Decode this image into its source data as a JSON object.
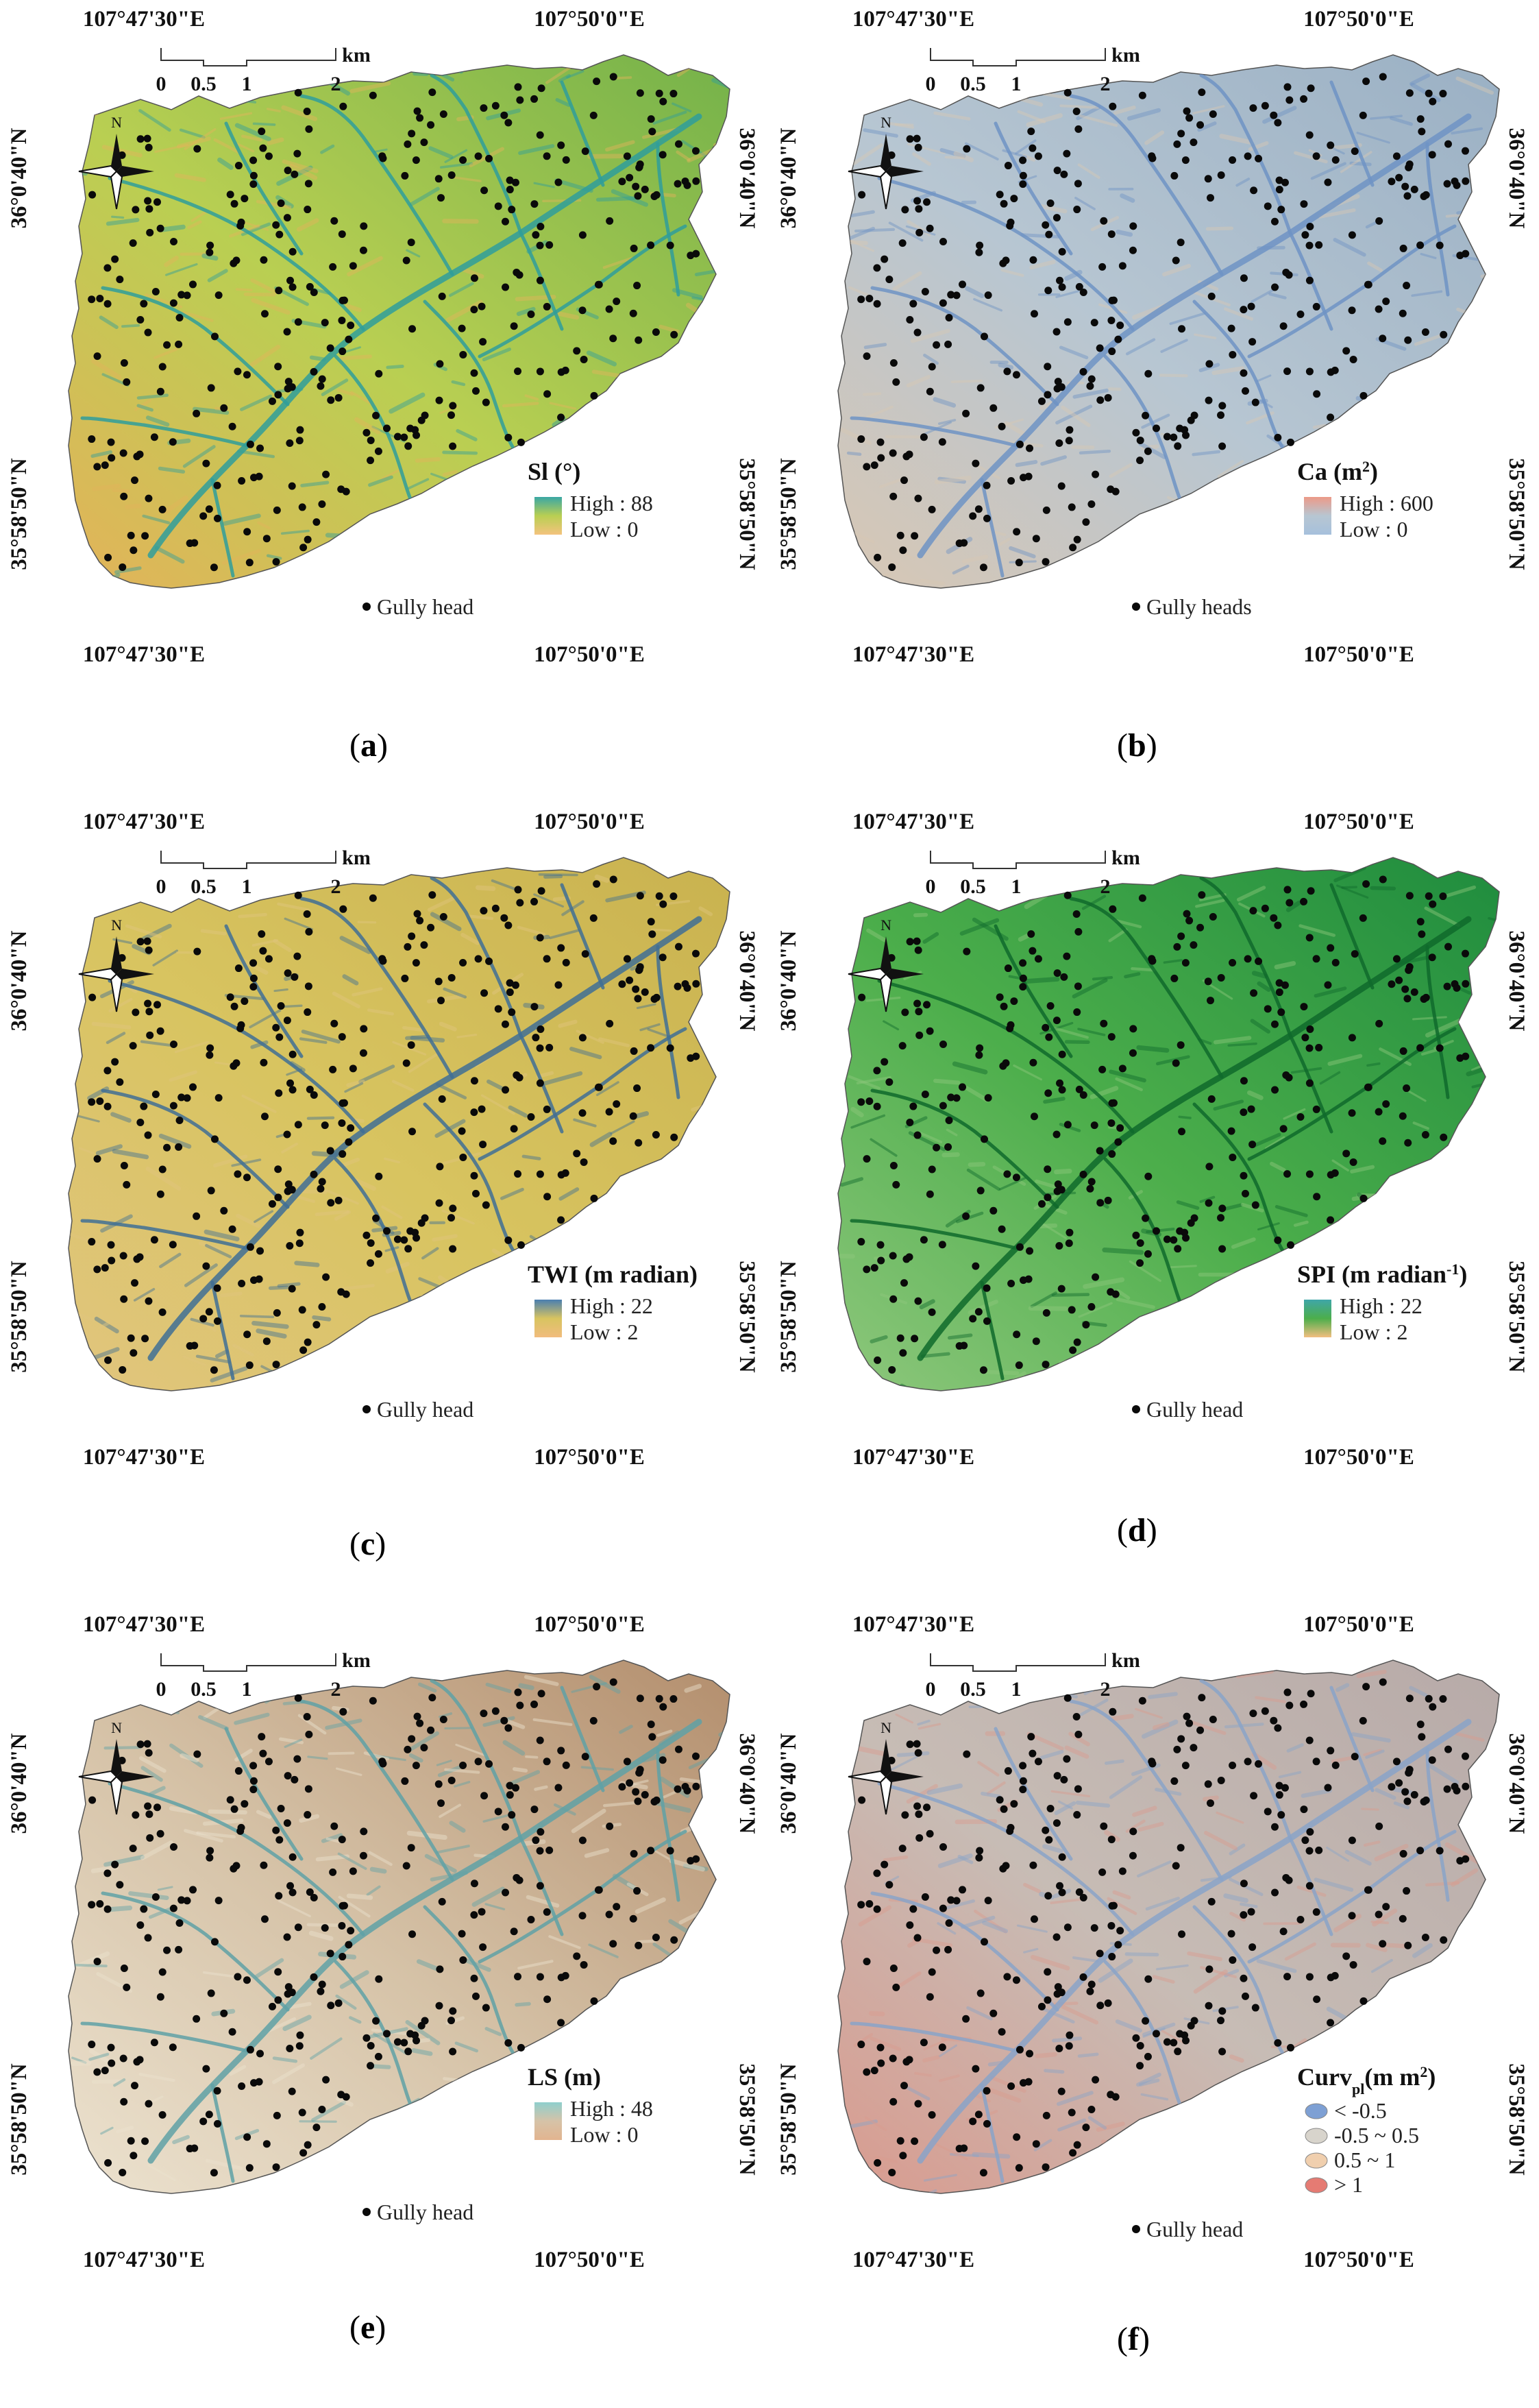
{
  "coordinates": {
    "top_left_lon": "107°47'30\"E",
    "top_right_lon": "107°50'0\"E",
    "bottom_left_lon": "107°47'30\"E",
    "bottom_right_lon": "107°50'0\"E",
    "upper_lat": "36°0'40\"N",
    "lower_lat": "35°58'50\"N"
  },
  "north_arrow": "N",
  "scale_bar": {
    "ticks": [
      "0",
      "0.5",
      "1",
      "2"
    ],
    "unit": "km"
  },
  "icons": {
    "north_arrow": "compass-rose-icon",
    "gully_marker": "black-dot-icon"
  },
  "panels": [
    {
      "label": "a",
      "title": "Sl (°)",
      "title_sub": "",
      "title_end": "",
      "legend": [
        {
          "text": "High : 88",
          "color": "#3aa7a4"
        },
        {
          "text": "Low : 0",
          "color": "#f4c37e"
        }
      ],
      "point_label": "Gully head",
      "colors": {
        "base": "#74b24a",
        "mid": "#b9cf52",
        "ridge": "#e3b35a",
        "valley": "#2f9d9b"
      }
    },
    {
      "label": "b",
      "title": "Ca (m",
      "title_sub": "2",
      "title_end": ")",
      "legend": [
        {
          "text": "High : 600",
          "color": "#ec9a88"
        },
        {
          "text": "Low : 0",
          "color": "#a6c0dc"
        }
      ],
      "point_label": "Gully heads",
      "colors": {
        "base": "#9ab0c4",
        "mid": "#b7c6d2",
        "ridge": "#d8c7b4",
        "valley": "#6f93c4"
      }
    },
    {
      "label": "c",
      "title": "TWI (m  radian)",
      "title_sub": "",
      "title_end": "",
      "legend": [
        {
          "text": "High : 22",
          "color": "#4a7fb0"
        },
        {
          "text": "Low : 2",
          "color": "#f1bc7e"
        }
      ],
      "point_label": "Gully head",
      "colors": {
        "base": "#c9b24f",
        "mid": "#d8c460",
        "ridge": "#e1c57e",
        "valley": "#3f6f95"
      }
    },
    {
      "label": "d",
      "title": "SPI (m  radian",
      "title_sub": "-1",
      "title_end": ")",
      "legend": [
        {
          "text": "High : 22",
          "color": "#3fa6a8"
        },
        {
          "text": "Low : 2",
          "color": "#f2be80"
        }
      ],
      "point_label": "Gully head",
      "colors": {
        "base": "#1f8c3e",
        "mid": "#4cae4b",
        "ridge": "#8ec77c",
        "valley": "#0f6a2c"
      }
    },
    {
      "label": "e",
      "title": "LS (m)",
      "title_sub": "",
      "title_end": "",
      "legend": [
        {
          "text": "High : 48",
          "color": "#8fcfcd"
        },
        {
          "text": "Low : 0",
          "color": "#e2b48f"
        }
      ],
      "point_label": "Gully head",
      "colors": {
        "base": "#b38e6d",
        "mid": "#d6c3a8",
        "ridge": "#ece2cf",
        "valley": "#5fa1a6"
      }
    },
    {
      "label": "f",
      "title": "Curv",
      "title_sub": "pl",
      "title_end": "(m m",
      "title_sup2": "2",
      "title_end2": ")",
      "legend": [
        {
          "text": "< -0.5",
          "color": "#7ea0d4"
        },
        {
          "text": "-0.5 ~ 0.5",
          "color": "#d8d4cc"
        },
        {
          "text": "0.5 ~ 1",
          "color": "#f0cfae"
        },
        {
          "text": "> 1",
          "color": "#e57b73"
        }
      ],
      "point_label": "Gully head",
      "colors": {
        "base": "#b7aaa8",
        "mid": "#c7bcb5",
        "ridge": "#d99b8f",
        "valley": "#8aa3c8"
      }
    }
  ]
}
